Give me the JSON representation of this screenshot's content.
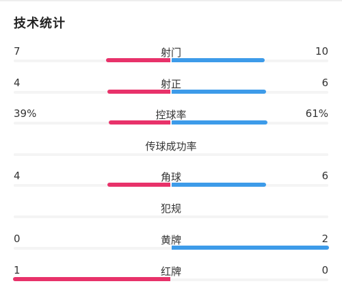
{
  "title": "技术统计",
  "colors": {
    "home": "#e8326a",
    "away": "#3d9be9",
    "track": "#f4f4f4"
  },
  "stats": [
    {
      "label": "射门",
      "left": "7",
      "right": "10",
      "home_share": 0.41,
      "away_share": 0.59,
      "has_bar": true
    },
    {
      "label": "射正",
      "left": "4",
      "right": "6",
      "home_share": 0.4,
      "away_share": 0.6,
      "has_bar": true
    },
    {
      "label": "控球率",
      "left": "39%",
      "right": "61%",
      "home_share": 0.39,
      "away_share": 0.61,
      "has_bar": true
    },
    {
      "label": "传球成功率",
      "left": "",
      "right": "",
      "home_share": 0,
      "away_share": 0,
      "has_bar": false
    },
    {
      "label": "角球",
      "left": "4",
      "right": "6",
      "home_share": 0.4,
      "away_share": 0.6,
      "has_bar": true
    },
    {
      "label": "犯规",
      "left": "",
      "right": "",
      "home_share": 0,
      "away_share": 0,
      "has_bar": false
    },
    {
      "label": "黄牌",
      "left": "0",
      "right": "2",
      "home_share": 0,
      "away_share": 1,
      "has_bar": true
    },
    {
      "label": "红牌",
      "left": "1",
      "right": "0",
      "home_share": 1,
      "away_share": 0,
      "has_bar": true
    }
  ]
}
